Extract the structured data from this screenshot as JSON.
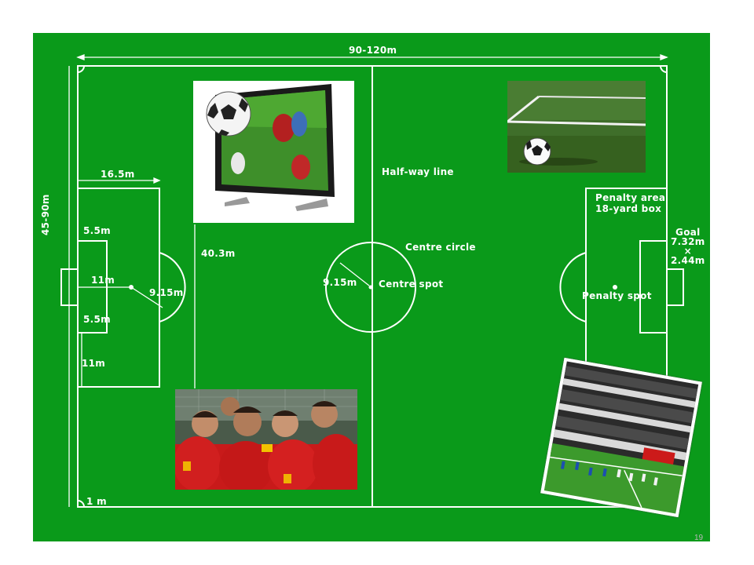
{
  "labels": {
    "pitch_length": "90-120m",
    "box_width": "16.5m",
    "pitch_width": "45-90m",
    "goal_area": "5.5m",
    "penalty_distance": "11m",
    "arc_radius": "9.15m",
    "box_depth": "40.3m",
    "goal_area_lower": "5.5m",
    "left_11m": "11m",
    "half_way_line": "Half-way line",
    "centre_circle": "Centre circle",
    "centre_radius": "9.15m",
    "centre_spot": "Centre spot",
    "penalty_area": "Penalty area\n18-yard box",
    "goal": "Goal\n7.32m\n×\n2.44m",
    "penalty_spot": "Penalty spot",
    "corner": "1 m"
  },
  "page_number": "19",
  "colors": {
    "pitch": "#0a9a1a",
    "lines": "#ffffff"
  },
  "photos": [
    {
      "name": "tv-soccer-photo",
      "subject": "television-with-ball"
    },
    {
      "name": "ball-on-grass-photo",
      "subject": "ball-on-grass"
    },
    {
      "name": "team-celebration-photo",
      "subject": "players-celebrating"
    },
    {
      "name": "stadium-game-photo",
      "subject": "stadium-video-game"
    }
  ]
}
